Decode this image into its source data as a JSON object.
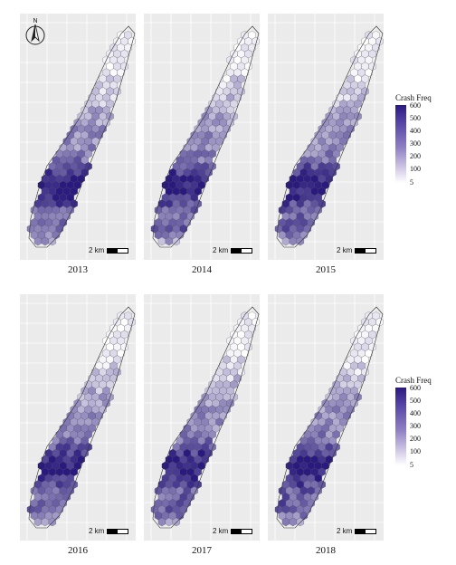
{
  "panels": [
    {
      "year": "2013",
      "scale_label": "2 km",
      "seed": 3
    },
    {
      "year": "2014",
      "scale_label": "2 km",
      "seed": 7
    },
    {
      "year": "2015",
      "scale_label": "2 km",
      "seed": 11
    },
    {
      "year": "2016",
      "scale_label": "2 km",
      "seed": 13
    },
    {
      "year": "2017",
      "scale_label": "2 km",
      "seed": 17
    },
    {
      "year": "2018",
      "scale_label": "2 km",
      "seed": 19
    }
  ],
  "compass": {
    "label": "N"
  },
  "legend": {
    "title": "Crash Freq",
    "ticks": [
      "600",
      "500",
      "400",
      "300",
      "200",
      "100",
      "5"
    ],
    "range": [
      5,
      600
    ],
    "colors": {
      "low": "#ffffff",
      "high": "#2a1a80"
    }
  },
  "colors": {
    "panel_bg": "#ebebeb",
    "grid": "#ffffff",
    "hex_stroke": "#444444"
  }
}
